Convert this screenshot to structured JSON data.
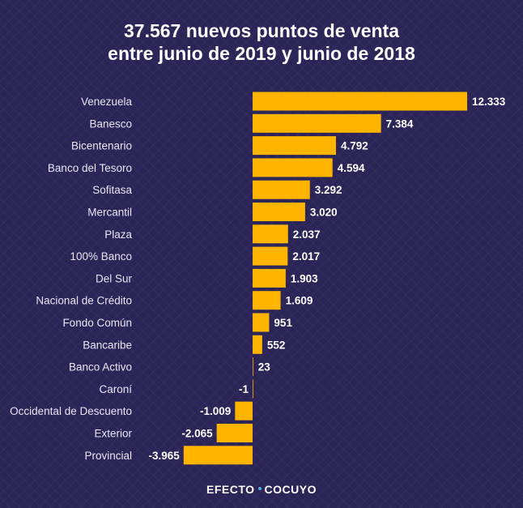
{
  "chart_data": {
    "type": "bar",
    "orientation": "horizontal",
    "title_lines": [
      "37.567 nuevos puntos de venta",
      "entre junio de 2019 y junio de 2018"
    ],
    "categories": [
      "Venezuela",
      "Banesco",
      "Bicentenario",
      "Banco del Tesoro",
      "Sofitasa",
      "Mercantil",
      "Plaza",
      "100% Banco",
      "Del Sur",
      "Nacional de Crédito",
      "Fondo Común",
      "Bancaribe",
      "Banco Activo",
      "Caroní",
      "Occidental de Descuento",
      "Exterior",
      "Provincial"
    ],
    "values": [
      12333,
      7384,
      4792,
      4594,
      3292,
      3020,
      2037,
      2017,
      1903,
      1609,
      951,
      552,
      23,
      -1,
      -1009,
      -2065,
      -3965
    ],
    "value_labels": [
      "12.333",
      "7.384",
      "4.792",
      "4.594",
      "3.292",
      "3.020",
      "2.037",
      "2.017",
      "1.903",
      "1.609",
      "951",
      "552",
      "23",
      "-1",
      "-1.009",
      "-2.065",
      "-3.965"
    ],
    "xlabel": "",
    "ylabel": "",
    "xlim": [
      -3965,
      12333
    ],
    "grid": false,
    "legend": "none",
    "bar_color": "#ffb400"
  },
  "footer": {
    "brand_left": "EFECTO",
    "brand_right": "COCUYO"
  }
}
